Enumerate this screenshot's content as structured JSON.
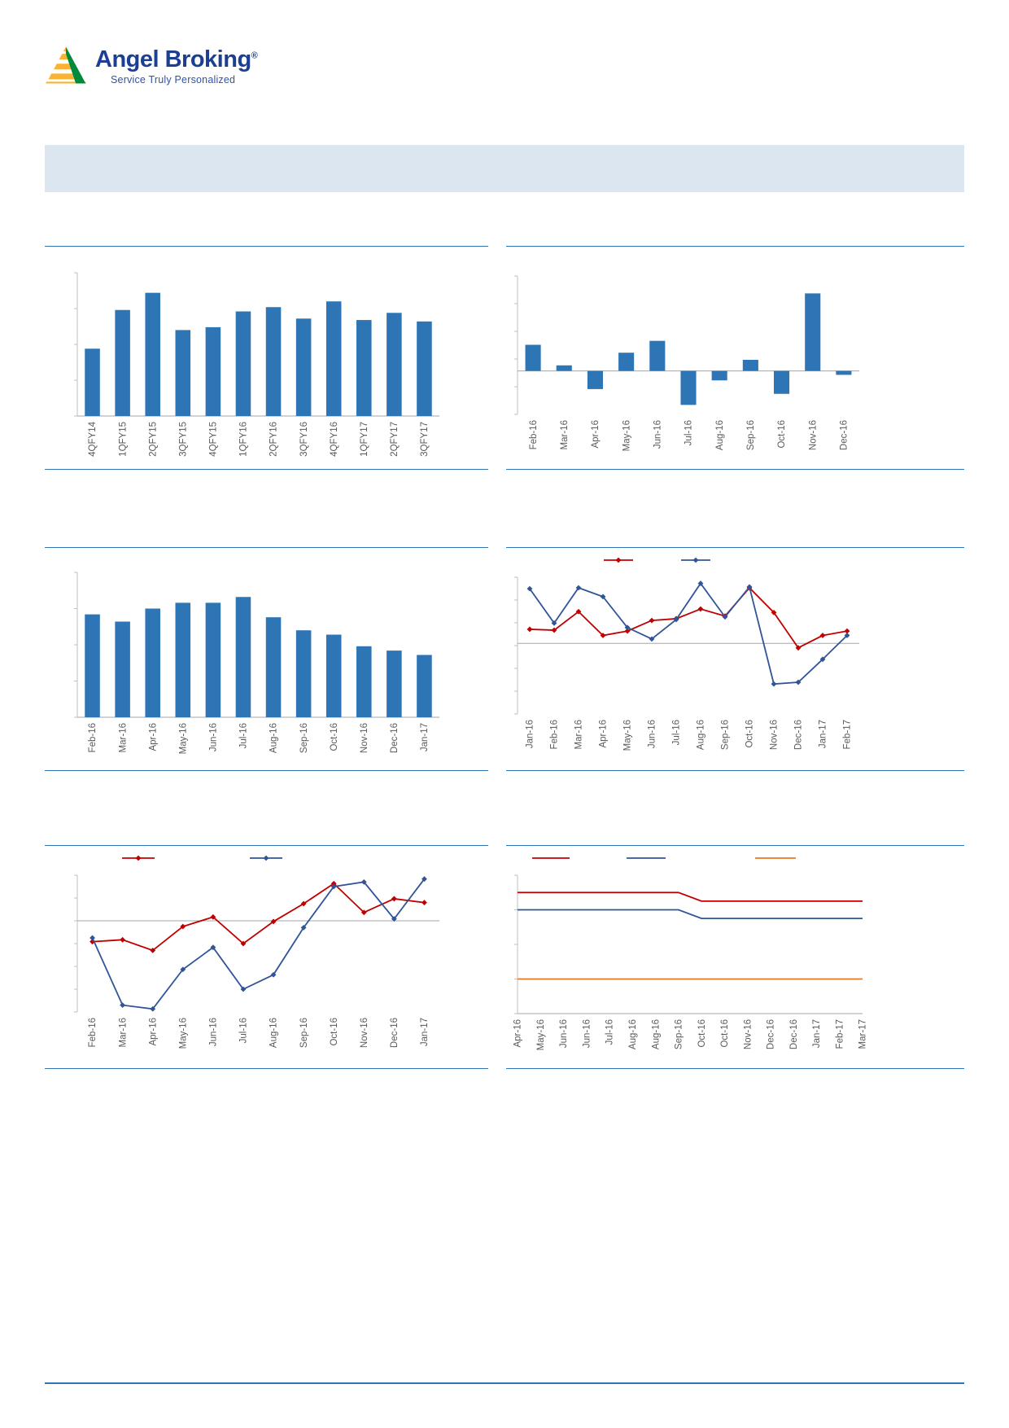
{
  "brand": {
    "name": "Angel Broking",
    "registered": "®",
    "tagline": "Service Truly Personalized",
    "name_color": "#1c3f94",
    "tagline_color": "#3053a4",
    "logo_yellow": "#f9b233",
    "logo_green": "#008a3c"
  },
  "banner": {
    "bg_color": "#dce6f1"
  },
  "layout_colors": {
    "separator": "#2e75b6",
    "footer_line": "#2e75b6",
    "axis": "#bfbfbf",
    "zero_line": "#a6a6a6",
    "tick_label": "#595959"
  },
  "chart_data": [
    {
      "id": "quarterly-bar-chart",
      "type": "bar",
      "categories": [
        "4QFY14",
        "1QFY15",
        "2QFY15",
        "3QFY15",
        "4QFY15",
        "1QFY16",
        "2QFY16",
        "3QFY16",
        "4QFY16",
        "1QFY17",
        "2QFY17",
        "3QFY17"
      ],
      "values": [
        47,
        74,
        86,
        60,
        62,
        73,
        76,
        68,
        80,
        67,
        72,
        66
      ],
      "ylim": [
        0,
        100
      ],
      "bar_color": "#2e75b6",
      "title": "",
      "xlabel": "",
      "ylabel": "",
      "grid": false,
      "tick_rotation": -90
    },
    {
      "id": "monthly-net-change-bar-chart",
      "type": "bar",
      "categories": [
        "Feb-16",
        "Mar-16",
        "Apr-16",
        "May-16",
        "Jun-16",
        "Jul-16",
        "Aug-16",
        "Sep-16",
        "Oct-16",
        "Nov-16",
        "Dec-16"
      ],
      "values": [
        33,
        7,
        -23,
        23,
        38,
        -43,
        -12,
        14,
        -29,
        98,
        -5
      ],
      "ylim": [
        -55,
        120
      ],
      "bar_color": "#2e75b6",
      "title": "",
      "xlabel": "",
      "ylabel": "",
      "grid": false,
      "tick_rotation": -90
    },
    {
      "id": "monthly-trend-bar-chart",
      "type": "bar",
      "categories": [
        "Feb-16",
        "Mar-16",
        "Apr-16",
        "May-16",
        "Jun-16",
        "Jul-16",
        "Aug-16",
        "Sep-16",
        "Oct-16",
        "Nov-16",
        "Dec-16",
        "Jan-17"
      ],
      "values": [
        71,
        66,
        75,
        79,
        79,
        83,
        69,
        60,
        57,
        49,
        46,
        43
      ],
      "ylim": [
        0,
        100
      ],
      "bar_color": "#2e75b6",
      "title": "",
      "xlabel": "",
      "ylabel": "",
      "grid": false,
      "tick_rotation": -90
    },
    {
      "id": "dual-line-growth-chart",
      "type": "line",
      "categories": [
        "Jan-16",
        "Feb-16",
        "Mar-16",
        "Apr-16",
        "May-16",
        "Jun-16",
        "Jul-16",
        "Aug-16",
        "Sep-16",
        "Oct-16",
        "Nov-16",
        "Dec-16",
        "Jan-17",
        "Feb-17"
      ],
      "series": [
        {
          "name": "red-series",
          "color": "#c00000",
          "marker": "diamond",
          "values": [
            1.6,
            1.5,
            3.6,
            0.9,
            1.4,
            2.6,
            2.8,
            3.9,
            3.1,
            6.3,
            3.5,
            -0.5,
            0.9,
            1.4
          ]
        },
        {
          "name": "blue-series",
          "color": "#305496",
          "marker": "diamond",
          "values": [
            6.2,
            2.3,
            6.3,
            5.3,
            1.8,
            0.5,
            2.7,
            6.8,
            3.0,
            6.4,
            -4.6,
            -4.4,
            -1.8,
            0.9
          ]
        }
      ],
      "ylim": [
        -8,
        7.5
      ],
      "legend_position": "top",
      "title": "",
      "xlabel": "",
      "ylabel": "",
      "grid": false,
      "tick_rotation": -90
    },
    {
      "id": "dual-line-comparison-chart",
      "type": "line",
      "categories": [
        "Feb-16",
        "Mar-16",
        "Apr-16",
        "May-16",
        "Jun-16",
        "Jul-16",
        "Aug-16",
        "Sep-16",
        "Oct-16",
        "Nov-16",
        "Dec-16",
        "Jan-17"
      ],
      "series": [
        {
          "name": "red-series",
          "color": "#c00000",
          "marker": "diamond",
          "values": [
            -5.5,
            -5.0,
            -7.8,
            -1.5,
            1.0,
            -6.0,
            -0.2,
            4.5,
            9.8,
            2.2,
            5.8,
            4.8
          ]
        },
        {
          "name": "blue-series",
          "color": "#305496",
          "marker": "diamond",
          "values": [
            -4.5,
            -22.2,
            -23.2,
            -12.8,
            -7.0,
            -18.0,
            -14.2,
            -1.8,
            9.0,
            10.2,
            0.5,
            11.0
          ]
        }
      ],
      "ylim": [
        -24,
        12
      ],
      "legend_position": "top",
      "title": "",
      "xlabel": "",
      "ylabel": "",
      "grid": false,
      "tick_rotation": -90
    },
    {
      "id": "policy-rates-step-line-chart",
      "type": "line",
      "categories": [
        "Apr-16",
        "May-16",
        "Jun-16",
        "Jun-16",
        "Jul-16",
        "Aug-16",
        "Aug-16",
        "Sep-16",
        "Oct-16",
        "Oct-16",
        "Nov-16",
        "Dec-16",
        "Dec-16",
        "Jan-17",
        "Feb-17",
        "Mar-17"
      ],
      "series": [
        {
          "name": "red-series",
          "color": "#c00000",
          "marker": "none",
          "values": [
            6.5,
            6.5,
            6.5,
            6.5,
            6.5,
            6.5,
            6.5,
            6.5,
            6.25,
            6.25,
            6.25,
            6.25,
            6.25,
            6.25,
            6.25,
            6.25
          ]
        },
        {
          "name": "blue-series",
          "color": "#305496",
          "marker": "none",
          "values": [
            6.0,
            6.0,
            6.0,
            6.0,
            6.0,
            6.0,
            6.0,
            6.0,
            5.75,
            5.75,
            5.75,
            5.75,
            5.75,
            5.75,
            5.75,
            5.75
          ]
        },
        {
          "name": "orange-series",
          "color": "#e87722",
          "marker": "none",
          "values": [
            4.0,
            4.0,
            4.0,
            4.0,
            4.0,
            4.0,
            4.0,
            4.0,
            4.0,
            4.0,
            4.0,
            4.0,
            4.0,
            4.0,
            4.0,
            4.0
          ]
        }
      ],
      "ylim": [
        3,
        7
      ],
      "legend_position": "top",
      "title": "",
      "xlabel": "",
      "ylabel": "",
      "grid": false,
      "tick_rotation": -90
    }
  ]
}
